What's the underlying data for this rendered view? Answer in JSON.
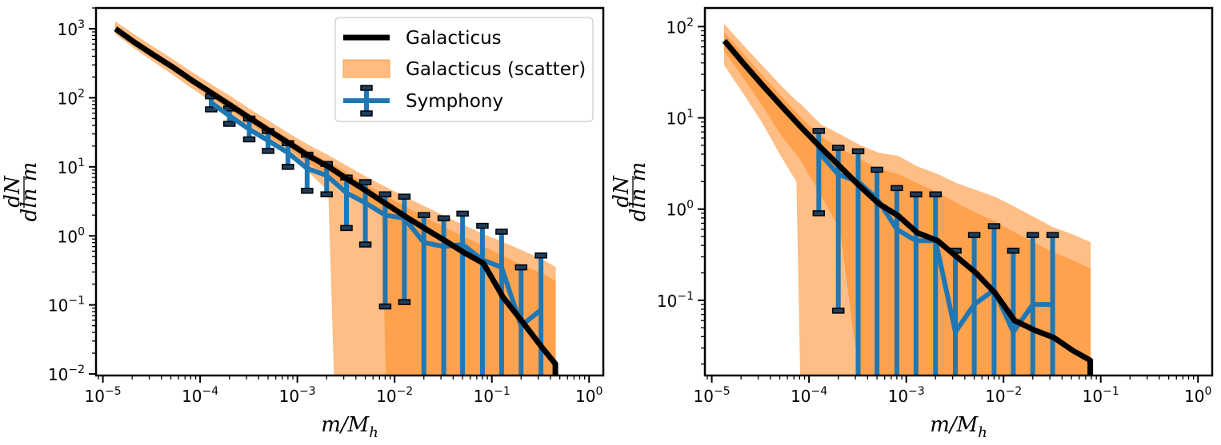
{
  "chart_data": [
    {
      "type": "line",
      "xscale": "log",
      "yscale": "log",
      "xlim": [
        8.5e-06,
        1.4
      ],
      "ylim": [
        0.0095,
        2000
      ],
      "xlabel": "m/M_h",
      "ylabel": "dN/dln m",
      "xticks": [
        1e-05,
        0.0001,
        0.001,
        0.01,
        0.1,
        1
      ],
      "xtick_labels": [
        "10^-5",
        "10^-4",
        "10^-3",
        "10^-2",
        "10^-1",
        "10^0"
      ],
      "yticks": [
        0.01,
        0.1,
        1,
        10,
        100,
        1000
      ],
      "ytick_labels": [
        "10^-2",
        "10^-1",
        "10^0",
        "10^1",
        "10^2",
        "10^3"
      ],
      "legend": {
        "placement": "top-right",
        "entries": [
          "Galacticus",
          "Galacticus (scatter)",
          "Symphony"
        ]
      },
      "colors": {
        "galacticus": "#000000",
        "scatter_outer": "#ffbb80",
        "scatter_inner": "#ff9f48",
        "symphony": "#1f77b4"
      },
      "series": [
        {
          "name": "Galacticus",
          "x": [
            1.35e-05,
            2.1e-05,
            3.3e-05,
            5.2e-05,
            8.2e-05,
            0.00013,
            0.00021,
            0.00033,
            0.00052,
            0.00082,
            0.0013,
            0.0021,
            0.0033,
            0.0052,
            0.0082,
            0.013,
            0.021,
            0.033,
            0.052,
            0.082,
            0.13,
            0.21,
            0.33,
            0.45
          ],
          "y": [
            1000,
            640,
            420,
            280,
            180,
            118,
            76,
            50,
            33,
            22,
            14.5,
            10,
            6.6,
            4.4,
            2.9,
            1.9,
            1.25,
            0.85,
            0.57,
            0.4,
            0.13,
            0.055,
            0.024,
            0.014
          ]
        },
        {
          "name": "Galacticus (scatter)",
          "band": "outer",
          "x": [
            1.35e-05,
            2.1e-05,
            3.3e-05,
            5.2e-05,
            8.2e-05,
            0.00013,
            0.00021,
            0.00033,
            0.00052,
            0.00082,
            0.0013,
            0.0021,
            0.0024,
            0.0033,
            0.0052,
            0.0082,
            0.013,
            0.021,
            0.033,
            0.052,
            0.082,
            0.13,
            0.21,
            0.33,
            0.45
          ],
          "upper": [
            1250,
            820,
            540,
            360,
            235,
            155,
            102,
            67,
            45,
            30,
            20.5,
            14.5,
            13,
            10,
            7,
            5,
            3.6,
            2.6,
            1.9,
            1.4,
            1.05,
            0.8,
            0.6,
            0.45,
            0.35
          ],
          "lower": [
            850,
            530,
            340,
            220,
            140,
            90,
            57,
            36,
            23,
            14.5,
            8.5,
            4.5,
            0.0095,
            0.0095,
            0.0095,
            0.0095,
            0.0095,
            0.0095,
            0.0095,
            0.0095,
            0.0095,
            0.0095,
            0.0095,
            0.0095,
            0.0095
          ]
        },
        {
          "name": "Galacticus (scatter)",
          "band": "inner",
          "x": [
            1.35e-05,
            2.1e-05,
            3.3e-05,
            5.2e-05,
            8.2e-05,
            0.00013,
            0.00021,
            0.00033,
            0.00052,
            0.00082,
            0.0013,
            0.0021,
            0.0033,
            0.0052,
            0.0075,
            0.0082,
            0.013,
            0.021,
            0.033,
            0.052,
            0.082,
            0.13,
            0.21,
            0.33,
            0.45
          ],
          "upper": [
            1100,
            710,
            470,
            310,
            200,
            132,
            86,
            56,
            37.5,
            25,
            16.5,
            11.5,
            8,
            5.4,
            4,
            3.7,
            2.6,
            1.8,
            1.3,
            0.95,
            0.7,
            0.5,
            0.37,
            0.28,
            0.22
          ],
          "lower": [
            920,
            580,
            380,
            250,
            160,
            104,
            66,
            43,
            28,
            18.5,
            11.5,
            7.5,
            4.8,
            3,
            2,
            0.0095,
            0.0095,
            0.0095,
            0.0095,
            0.0095,
            0.0095,
            0.0095,
            0.0095,
            0.0095,
            0.0095
          ]
        },
        {
          "name": "Symphony",
          "x": [
            0.00013,
            0.0002,
            0.00032,
            0.0005,
            0.0008,
            0.00126,
            0.002,
            0.0032,
            0.005,
            0.008,
            0.0126,
            0.02,
            0.032,
            0.05,
            0.08,
            0.126,
            0.2,
            0.32
          ],
          "y": [
            85,
            55,
            35,
            24,
            16,
            9.5,
            7.5,
            4.2,
            3,
            2,
            1.8,
            0.8,
            0.7,
            0.75,
            0.45,
            0.35,
            0.05,
            0.085
          ],
          "yerr_upper": [
            105,
            70,
            50,
            33,
            22,
            15,
            11,
            7,
            6,
            4,
            3.7,
            2,
            1.8,
            2.1,
            1.4,
            1.15,
            0.35,
            0.52
          ],
          "yerr_lower": [
            68,
            42,
            25,
            17,
            10,
            4.5,
            4,
            1.3,
            0.75,
            0.095,
            0.11,
            0.0095,
            0.0095,
            0.0095,
            0.0095,
            0.0095,
            0.0095,
            0.0095
          ]
        }
      ]
    },
    {
      "type": "line",
      "xscale": "log",
      "yscale": "log",
      "xlim": [
        8.5e-06,
        1.4
      ],
      "ylim": [
        0.015,
        160
      ],
      "xlabel": "m/M_h",
      "ylabel": "dN/dln m",
      "xticks": [
        1e-05,
        0.0001,
        0.001,
        0.01,
        0.1,
        1
      ],
      "xtick_labels": [
        "10^-5",
        "10^-4",
        "10^-3",
        "10^-2",
        "10^-1",
        "10^0"
      ],
      "yticks": [
        0.1,
        1,
        10,
        100
      ],
      "ytick_labels": [
        "10^-1",
        "10^0",
        "10^1",
        "10^2"
      ],
      "colors": {
        "galacticus": "#000000",
        "scatter_outer": "#ffbb80",
        "scatter_inner": "#ff9f48",
        "symphony": "#1f77b4"
      },
      "series": [
        {
          "name": "Galacticus",
          "x": [
            1.35e-05,
            2.1e-05,
            3.3e-05,
            5.2e-05,
            8.2e-05,
            0.00013,
            0.00021,
            0.00033,
            0.00052,
            0.00082,
            0.0013,
            0.0021,
            0.0033,
            0.0052,
            0.0082,
            0.013,
            0.021,
            0.033,
            0.052,
            0.078
          ],
          "y": [
            70,
            40,
            23,
            13.5,
            8,
            4.8,
            2.9,
            1.8,
            1.15,
            0.85,
            0.55,
            0.45,
            0.3,
            0.2,
            0.12,
            0.06,
            0.047,
            0.039,
            0.028,
            0.022
          ]
        },
        {
          "name": "Galacticus (scatter)",
          "band": "outer",
          "x": [
            1.35e-05,
            2.1e-05,
            3.3e-05,
            5.2e-05,
            7.5e-05,
            8.2e-05,
            0.00013,
            0.00021,
            0.00033,
            0.00052,
            0.00082,
            0.0013,
            0.0021,
            0.0033,
            0.0052,
            0.0082,
            0.013,
            0.021,
            0.033,
            0.052,
            0.078
          ],
          "upper": [
            105,
            62,
            37,
            22,
            15,
            14,
            8.5,
            6.5,
            5,
            4.1,
            3.8,
            2.9,
            2.4,
            1.9,
            1.6,
            1.35,
            1.05,
            0.8,
            0.62,
            0.52,
            0.43
          ],
          "lower": [
            38,
            19,
            9,
            3.8,
            2,
            0.015,
            0.015,
            0.015,
            0.015,
            0.015,
            0.015,
            0.015,
            0.015,
            0.015,
            0.015,
            0.015,
            0.015,
            0.015,
            0.015,
            0.015,
            0.015
          ]
        },
        {
          "name": "Galacticus (scatter)",
          "band": "inner",
          "x": [
            1.35e-05,
            2.1e-05,
            3.3e-05,
            5.2e-05,
            8.2e-05,
            0.00013,
            0.00021,
            0.00033,
            0.00052,
            0.00082,
            0.0013,
            0.0021,
            0.0033,
            0.0052,
            0.0082,
            0.013,
            0.021,
            0.033,
            0.052,
            0.078
          ],
          "upper": [
            85,
            50,
            29,
            17,
            10,
            6.2,
            4.6,
            3.5,
            2.7,
            2.4,
            1.9,
            1.5,
            1.15,
            0.9,
            0.72,
            0.55,
            0.42,
            0.33,
            0.27,
            0.22
          ],
          "lower": [
            55,
            28,
            14,
            6.5,
            3.5,
            1.5,
            0.6,
            0.015,
            0.015,
            0.015,
            0.015,
            0.015,
            0.015,
            0.015,
            0.015,
            0.015,
            0.015,
            0.015,
            0.015,
            0.015
          ]
        },
        {
          "name": "Symphony",
          "x": [
            0.000126,
            0.0002,
            0.00032,
            0.0005,
            0.0008,
            0.00126,
            0.002,
            0.0032,
            0.005,
            0.008,
            0.0126,
            0.02,
            0.032
          ],
          "y": [
            4.2,
            2.4,
            2,
            1.3,
            0.6,
            0.45,
            0.45,
            0.045,
            0.09,
            0.13,
            0.045,
            0.09,
            0.09
          ],
          "yerr_upper": [
            7.2,
            4.7,
            4.3,
            2.7,
            1.7,
            1.45,
            1.45,
            0.35,
            0.52,
            0.65,
            0.35,
            0.52,
            0.52
          ],
          "yerr_lower": [
            0.9,
            0.077,
            0.015,
            0.015,
            0.015,
            0.015,
            0.015,
            0.015,
            0.015,
            0.015,
            0.015,
            0.015,
            0.015
          ]
        }
      ]
    }
  ]
}
